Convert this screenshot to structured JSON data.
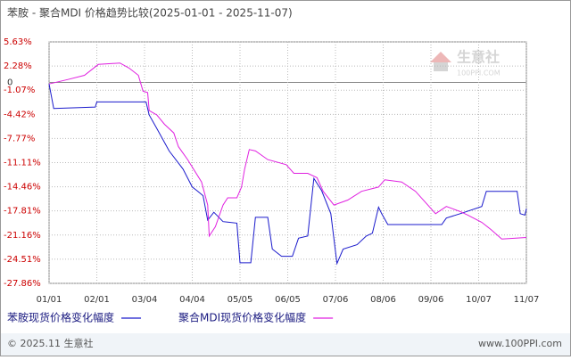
{
  "chart_data": {
    "type": "line",
    "title": "苯胺 - 聚合MDI 价格趋势比较(2025-01-01 - 2025-11-07)",
    "xlim": [
      "01/01",
      "11/07"
    ],
    "xticks": [
      "01/01",
      "02/01",
      "03/04",
      "04/04",
      "05/05",
      "06/05",
      "07/06",
      "08/06",
      "09/06",
      "10/07",
      "11/07"
    ],
    "ylim": [
      -27.86,
      5.63
    ],
    "yticks": [
      {
        "value": 5.63,
        "label": "5.63%"
      },
      {
        "value": 2.28,
        "label": "2.28%"
      },
      0,
      {
        "value": -1.07,
        "label": "-1.07%"
      },
      {
        "value": -4.42,
        "label": "-4.42%"
      },
      {
        "value": -7.77,
        "label": "-7.77%"
      },
      {
        "value": -11.11,
        "label": "-11.11%"
      },
      {
        "value": -14.46,
        "label": "-14.46%"
      },
      {
        "value": -17.81,
        "label": "-17.81%"
      },
      {
        "value": -21.16,
        "label": "-21.16%"
      },
      {
        "value": -24.51,
        "label": "-24.51%"
      },
      {
        "value": -27.86,
        "label": "-27.86%"
      }
    ],
    "grid": true,
    "series": [
      {
        "name": "苯胺现货价格变化幅度",
        "color": "#1a1acc",
        "x": [
          "01/01",
          "01/04",
          "01/31",
          "02/01",
          "03/05",
          "03/07",
          "03/12",
          "03/20",
          "03/29",
          "04/04",
          "04/07",
          "04/11",
          "04/14",
          "04/18",
          "04/24",
          "05/03",
          "05/05",
          "05/12",
          "05/15",
          "05/23",
          "05/26",
          "06/01",
          "06/08",
          "06/12",
          "06/18",
          "06/22",
          "06/27",
          "07/03",
          "07/07",
          "07/11",
          "07/20",
          "07/26",
          "07/30",
          "08/03",
          "08/05",
          "08/09",
          "09/13",
          "09/16",
          "09/25",
          "10/09",
          "10/12",
          "11/01",
          "11/03",
          "11/06",
          "11/07"
        ],
        "values": [
          -0.2,
          -3.6,
          -3.4,
          -2.7,
          -2.7,
          -4.5,
          -6.4,
          -9.5,
          -12.0,
          -14.5,
          -15.0,
          -15.7,
          -19.1,
          -18.0,
          -19.3,
          -19.5,
          -25.0,
          -25.0,
          -18.7,
          -18.7,
          -23.1,
          -24.1,
          -24.1,
          -21.6,
          -21.3,
          -13.3,
          -15.0,
          -18.2,
          -25.1,
          -23.1,
          -22.5,
          -21.3,
          -20.9,
          -17.3,
          -18.2,
          -19.7,
          -19.7,
          -18.8,
          -18.2,
          -17.2,
          -15.1,
          -15.1,
          -18.2,
          -18.4,
          -17.5
        ]
      },
      {
        "name": "聚合MDI现货价格变化幅度",
        "color": "#e020e0",
        "x": [
          "01/01",
          "01/13",
          "01/24",
          "02/02",
          "02/16",
          "02/22",
          "02/28",
          "03/03",
          "03/06",
          "03/07",
          "03/12",
          "03/17",
          "03/23",
          "03/26",
          "04/01",
          "04/10",
          "04/14",
          "04/15",
          "04/19",
          "04/24",
          "04/27",
          "05/03",
          "05/06",
          "05/08",
          "05/11",
          "05/15",
          "05/23",
          "06/04",
          "06/09",
          "06/18",
          "06/24",
          "06/28",
          "07/05",
          "07/14",
          "07/23",
          "08/03",
          "08/07",
          "08/18",
          "08/27",
          "09/04",
          "09/09",
          "09/16",
          "09/25",
          "09/30",
          "10/09",
          "10/15",
          "10/22",
          "11/07"
        ],
        "values": [
          -0.2,
          0.4,
          1.0,
          2.5,
          2.7,
          2.0,
          1.0,
          -1.2,
          -1.4,
          -3.9,
          -4.5,
          -5.8,
          -7.0,
          -8.9,
          -10.7,
          -13.8,
          -17.0,
          -21.3,
          -20.0,
          -17.0,
          -16.0,
          -16.0,
          -14.5,
          -12.0,
          -9.3,
          -9.5,
          -10.7,
          -11.4,
          -12.6,
          -12.6,
          -13.2,
          -15.1,
          -17.0,
          -16.3,
          -15.1,
          -14.5,
          -13.5,
          -13.8,
          -15.1,
          -17.0,
          -18.2,
          -17.2,
          -17.9,
          -18.4,
          -19.4,
          -20.4,
          -21.7,
          -21.5
        ]
      }
    ]
  },
  "watermark": {
    "name": "生意社",
    "site": "100PPI.COM"
  },
  "footer": {
    "left": "© 2025.11 生意社",
    "right": "www.100PPI.com"
  }
}
